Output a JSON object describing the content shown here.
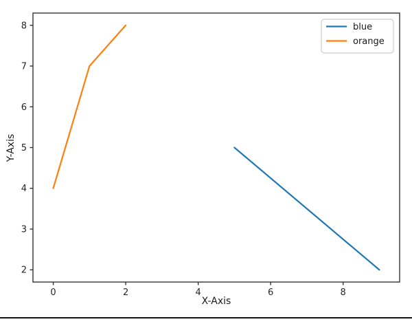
{
  "chart_data": {
    "type": "line",
    "title": "",
    "xlabel": "X-Axis",
    "ylabel": "Y-Axis",
    "xlim": [
      -0.56,
      9.56
    ],
    "ylim": [
      1.7,
      8.3
    ],
    "x_ticks": [
      0,
      2,
      4,
      6,
      8
    ],
    "y_ticks": [
      2,
      3,
      4,
      5,
      6,
      7,
      8
    ],
    "grid": false,
    "legend_position": "upper right",
    "legend_entries": [
      "blue",
      "orange"
    ],
    "series": [
      {
        "name": "blue",
        "color": "#1f77b4",
        "x": [
          5,
          9
        ],
        "y": [
          5,
          2
        ]
      },
      {
        "name": "orange",
        "color": "#ff7f0e",
        "x": [
          0,
          1,
          2
        ],
        "y": [
          4,
          7,
          8
        ]
      }
    ]
  },
  "colors": {
    "background": "#ffffff",
    "spine": "#333333",
    "tick": "#333333",
    "tick_label": "#262626",
    "legend_border": "#cccccc",
    "legend_background": "#ffffff",
    "bottom_rule": "#141414"
  }
}
